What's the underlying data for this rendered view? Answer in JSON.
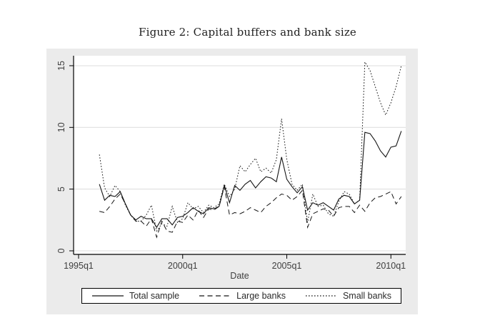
{
  "figure": {
    "title": "Figure 2: Capital buffers and bank size"
  },
  "chart_data": {
    "type": "line",
    "title": "Figure 2: Capital buffers and bank size",
    "xlabel": "Date",
    "ylabel": "",
    "grid": "horizontal",
    "legend_position": "bottom",
    "x_axis": {
      "tick_labels": [
        "1995q1",
        "2000q1",
        "2005q1",
        "2010q1"
      ],
      "tick_interval_years": 5
    },
    "y_axis": {
      "tick_labels": [
        "0",
        "5",
        "10",
        "15"
      ],
      "tick_values": [
        0,
        5,
        10,
        15
      ],
      "ylim": [
        0,
        15.8
      ]
    },
    "x_quarters": [
      "1996q1",
      "1996q2",
      "1996q3",
      "1996q4",
      "1997q1",
      "1997q2",
      "1997q3",
      "1997q4",
      "1998q1",
      "1998q2",
      "1998q3",
      "1998q4",
      "1999q1",
      "1999q2",
      "1999q3",
      "1999q4",
      "2000q1",
      "2000q2",
      "2000q3",
      "2000q4",
      "2001q1",
      "2001q2",
      "2001q3",
      "2001q4",
      "2002q1",
      "2002q2",
      "2002q3",
      "2002q4",
      "2003q1",
      "2003q2",
      "2003q3",
      "2003q4",
      "2004q1",
      "2004q2",
      "2004q3",
      "2004q4",
      "2005q1",
      "2005q2",
      "2005q3",
      "2005q4",
      "2006q1",
      "2006q2",
      "2006q3",
      "2006q4",
      "2007q1",
      "2007q2",
      "2007q3",
      "2007q4",
      "2008q1",
      "2008q2",
      "2008q3",
      "2008q4",
      "2009q1",
      "2009q2",
      "2009q3",
      "2009q4",
      "2010q1",
      "2010q2",
      "2010q3"
    ],
    "series": [
      {
        "name": "Total sample",
        "style": "solid",
        "values": [
          5.4,
          4.1,
          4.5,
          4.4,
          4.8,
          3.8,
          2.9,
          2.5,
          2.8,
          2.6,
          2.6,
          1.9,
          2.6,
          2.6,
          2.1,
          2.7,
          2.8,
          3.1,
          3.5,
          3.2,
          3.0,
          3.5,
          3.4,
          3.6,
          5.3,
          3.9,
          5.3,
          4.9,
          5.4,
          5.7,
          5.1,
          5.6,
          6.0,
          5.9,
          5.6,
          7.6,
          5.8,
          5.2,
          4.7,
          5.2,
          3.3,
          3.9,
          3.7,
          3.9,
          3.6,
          3.3,
          4.2,
          4.5,
          4.4,
          3.8,
          4.1,
          9.6,
          9.5,
          8.9,
          8.1,
          7.6,
          8.4,
          8.5,
          9.7
        ]
      },
      {
        "name": "Large banks",
        "style": "dashed",
        "values": [
          3.2,
          3.1,
          3.6,
          4.2,
          4.6,
          3.8,
          2.9,
          2.4,
          2.4,
          2.0,
          2.6,
          1.1,
          2.4,
          1.6,
          1.5,
          2.4,
          2.3,
          2.9,
          2.5,
          3.3,
          2.7,
          3.4,
          3.3,
          3.6,
          5.2,
          2.9,
          3.1,
          3.0,
          3.2,
          3.5,
          3.3,
          3.1,
          3.6,
          3.9,
          4.3,
          4.6,
          4.5,
          4.1,
          4.4,
          4.9,
          1.9,
          3.0,
          3.2,
          3.4,
          3.3,
          2.8,
          3.5,
          3.6,
          3.6,
          3.1,
          3.7,
          3.2,
          3.9,
          4.3,
          4.4,
          4.6,
          4.8,
          3.8,
          4.4
        ]
      },
      {
        "name": "Small banks",
        "style": "dotted",
        "values": [
          7.8,
          5.1,
          4.4,
          5.3,
          4.8,
          3.7,
          2.9,
          2.4,
          2.4,
          2.9,
          3.7,
          1.6,
          2.2,
          2.0,
          3.6,
          2.3,
          2.6,
          3.9,
          3.4,
          3.6,
          3.1,
          3.7,
          3.5,
          3.8,
          5.4,
          4.4,
          5.0,
          6.9,
          6.4,
          7.0,
          7.5,
          6.4,
          6.7,
          6.3,
          7.4,
          10.7,
          7.4,
          5.4,
          4.9,
          5.4,
          2.3,
          4.6,
          3.6,
          3.7,
          3.0,
          2.8,
          4.0,
          4.8,
          4.6,
          3.8,
          4.1,
          15.3,
          14.6,
          13.3,
          12.0,
          11.0,
          12.0,
          13.3,
          15.0
        ]
      }
    ],
    "colors": {
      "line": "#141414",
      "plot_bg": "#ffffff",
      "region_bg": "#ebebeb",
      "gridline": "#dcdcdc",
      "axis": "#000000",
      "tick_text": "#3f3f3f"
    }
  }
}
